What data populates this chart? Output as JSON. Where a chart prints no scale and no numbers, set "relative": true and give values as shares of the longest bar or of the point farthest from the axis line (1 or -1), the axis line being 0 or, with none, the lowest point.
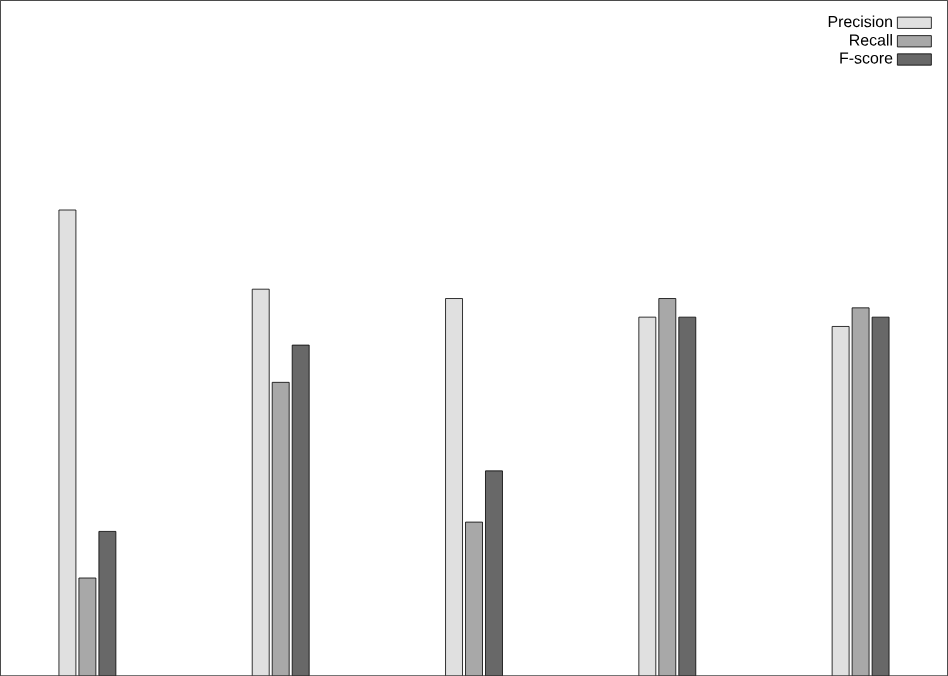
{
  "chart_data": {
    "type": "bar",
    "relative": true,
    "legend": "top right",
    "categories": [
      null,
      null,
      null,
      null,
      null
    ],
    "series": [
      {
        "name": "Precision",
        "color": "#e0e0e0",
        "values": [
          1,
          0.83,
          0.81,
          0.77,
          0.75
        ]
      },
      {
        "name": "Recall",
        "color": "#a8a8a8",
        "values": [
          0.21,
          0.63,
          0.33,
          0.81,
          0.79
        ]
      },
      {
        "name": "F-score",
        "color": "#686868",
        "values": [
          0.31,
          0.71,
          0.44,
          0.77,
          0.77
        ]
      }
    ]
  }
}
